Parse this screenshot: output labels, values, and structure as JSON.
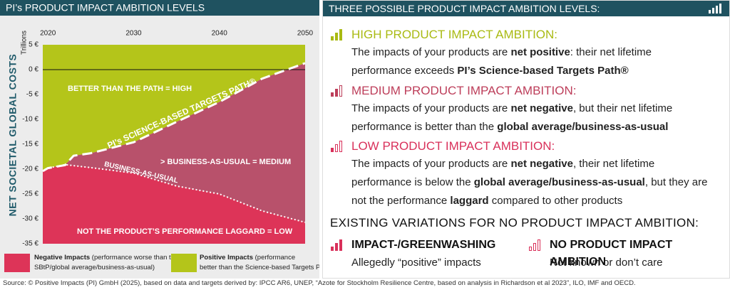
{
  "chart_data": {
    "type": "area",
    "title": "PI’s PRODUCT IMPACT AMBITION LEVELS",
    "y_label": "NET SOCIETAL GLOBAL COSTS",
    "y_unit": "Trillions",
    "x": [
      2019.4,
      2020,
      2022,
      2023,
      2025,
      2030,
      2035,
      2040,
      2045,
      2050
    ],
    "xlim": [
      2019.4,
      2050
    ],
    "xticks": [
      2020,
      2030,
      2040,
      2050
    ],
    "ylim": [
      -35,
      5
    ],
    "yticks": [
      {
        "value": 5,
        "label": "5 €"
      },
      {
        "value": 0,
        "label": "0 €"
      },
      {
        "value": -5,
        "label": "-5 €"
      },
      {
        "value": -10,
        "label": "-10 €"
      },
      {
        "value": -15,
        "label": "-15 €"
      },
      {
        "value": -20,
        "label": "-20 €"
      },
      {
        "value": -25,
        "label": "-25 €"
      },
      {
        "value": -30,
        "label": "-30 €"
      },
      {
        "value": -35,
        "label": "-35 €"
      }
    ],
    "series": [
      {
        "name": "PI’s SCIENCE-BASED TARGETS PATH®",
        "color": "#ffffff",
        "style": "dashed",
        "values": [
          -20.4,
          -19.8,
          -19.2,
          -17.3,
          -16.8,
          -14.6,
          -10.5,
          -6.5,
          -1.8,
          1.3
        ]
      },
      {
        "name": "BUSINESS-AS-USUAL",
        "color": "#ffffff",
        "style": "dotted",
        "values": [
          -20.4,
          -19.8,
          -19.1,
          -19.3,
          -19.7,
          -20.8,
          -23.4,
          -25.0,
          -28.4,
          -30.7
        ]
      }
    ],
    "regions": [
      {
        "label": "BETTER THAN THE PATH = HIGH",
        "color": "#b4c51a"
      },
      {
        "label": "> BUSINESS-AS-USUAL = MEDIUM",
        "color": "#b8516b"
      },
      {
        "label": "NOT THE PRODUCT’S PERFORMANCE LAGGARD = LOW",
        "color": "#dd3458"
      }
    ],
    "legend": [
      {
        "label": "Negative Impacts",
        "description": "(performance worse than the SBtP/global average/business-as-usual)",
        "color": "#dd3458"
      },
      {
        "label": "Positive Impacts",
        "description": "(performance better than the Science-based Targets Path®)",
        "color": "#b4c51a"
      }
    ]
  },
  "panel": {
    "title": "THREE POSSIBLE PRODUCT IMPACT AMBITION LEVELS:",
    "levels": [
      {
        "title": "HIGH PRODUCT IMPACT AMBITION:",
        "color": "#a9ba12",
        "text": [
          "The impacts of your products are ",
          "net positive",
          ": their net lifetime performance exceeds ",
          "PI’s Science-based Targets Path®"
        ]
      },
      {
        "title": "MEDIUM PRODUCT IMPACT AMBITION:",
        "color": "#bd3e5a",
        "text": [
          "The impacts of your products are ",
          "net negative",
          ", but their net lifetime performance is better than the ",
          "global average/business-as-usual"
        ]
      },
      {
        "title": "LOW PRODUCT IMPACT AMBITION:",
        "color": "#d9305a",
        "text": [
          "The impacts of your products are ",
          "net negative",
          ", their net lifetime performance is below the ",
          "global average/business-as-usual",
          ", but they are not the performance ",
          "laggard",
          " compared to other products"
        ]
      }
    ],
    "variations_title": "EXISTING VARIATIONS FOR NO PRODUCT IMPACT AMBITION:",
    "variations": [
      {
        "title": "IMPACT-/GREENWASHING",
        "text": "Allegedly “positive” impacts"
      },
      {
        "title": "NO PRODUCT IMPACT AMBITION",
        "text": "Not known or don’t care"
      }
    ]
  },
  "source": "Source: © Positive Impacts (PI) GmbH (2025), based on data and targets derived by: IPCC AR6, UNEP, “Azote for Stockholm Resilience Centre, based on analysis in Richardson et al 2023”, ILO, IMF and OECD."
}
